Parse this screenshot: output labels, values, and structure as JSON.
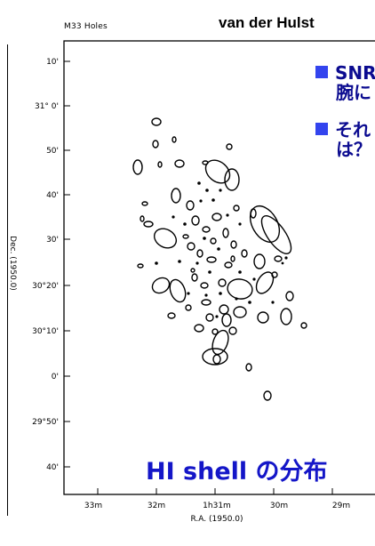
{
  "header": {
    "figure_title": "M33 Holes",
    "credit": "van der Hulst"
  },
  "bullets": [
    {
      "line1": "SNR",
      "line2": "腕に"
    },
    {
      "line1": "それ",
      "line2": "は？"
    }
  ],
  "caption": "HI shell の分布",
  "axes": {
    "x_label": "R.A. (1950.0)",
    "x_ticks": [
      "33m",
      "32m",
      "1h31m",
      "30m",
      "29m"
    ],
    "y_ticks": [
      "10'",
      "31° 0'",
      "50'",
      "40'",
      "30'",
      "30°20'",
      "30°10'",
      "0'",
      "29°50'",
      "40'"
    ],
    "y_label_partial": "Dec. (1950.0)"
  },
  "colors": {
    "bullet": "#3344ee",
    "caption": "#1416c8",
    "bullet_text": "#0b0b90"
  }
}
